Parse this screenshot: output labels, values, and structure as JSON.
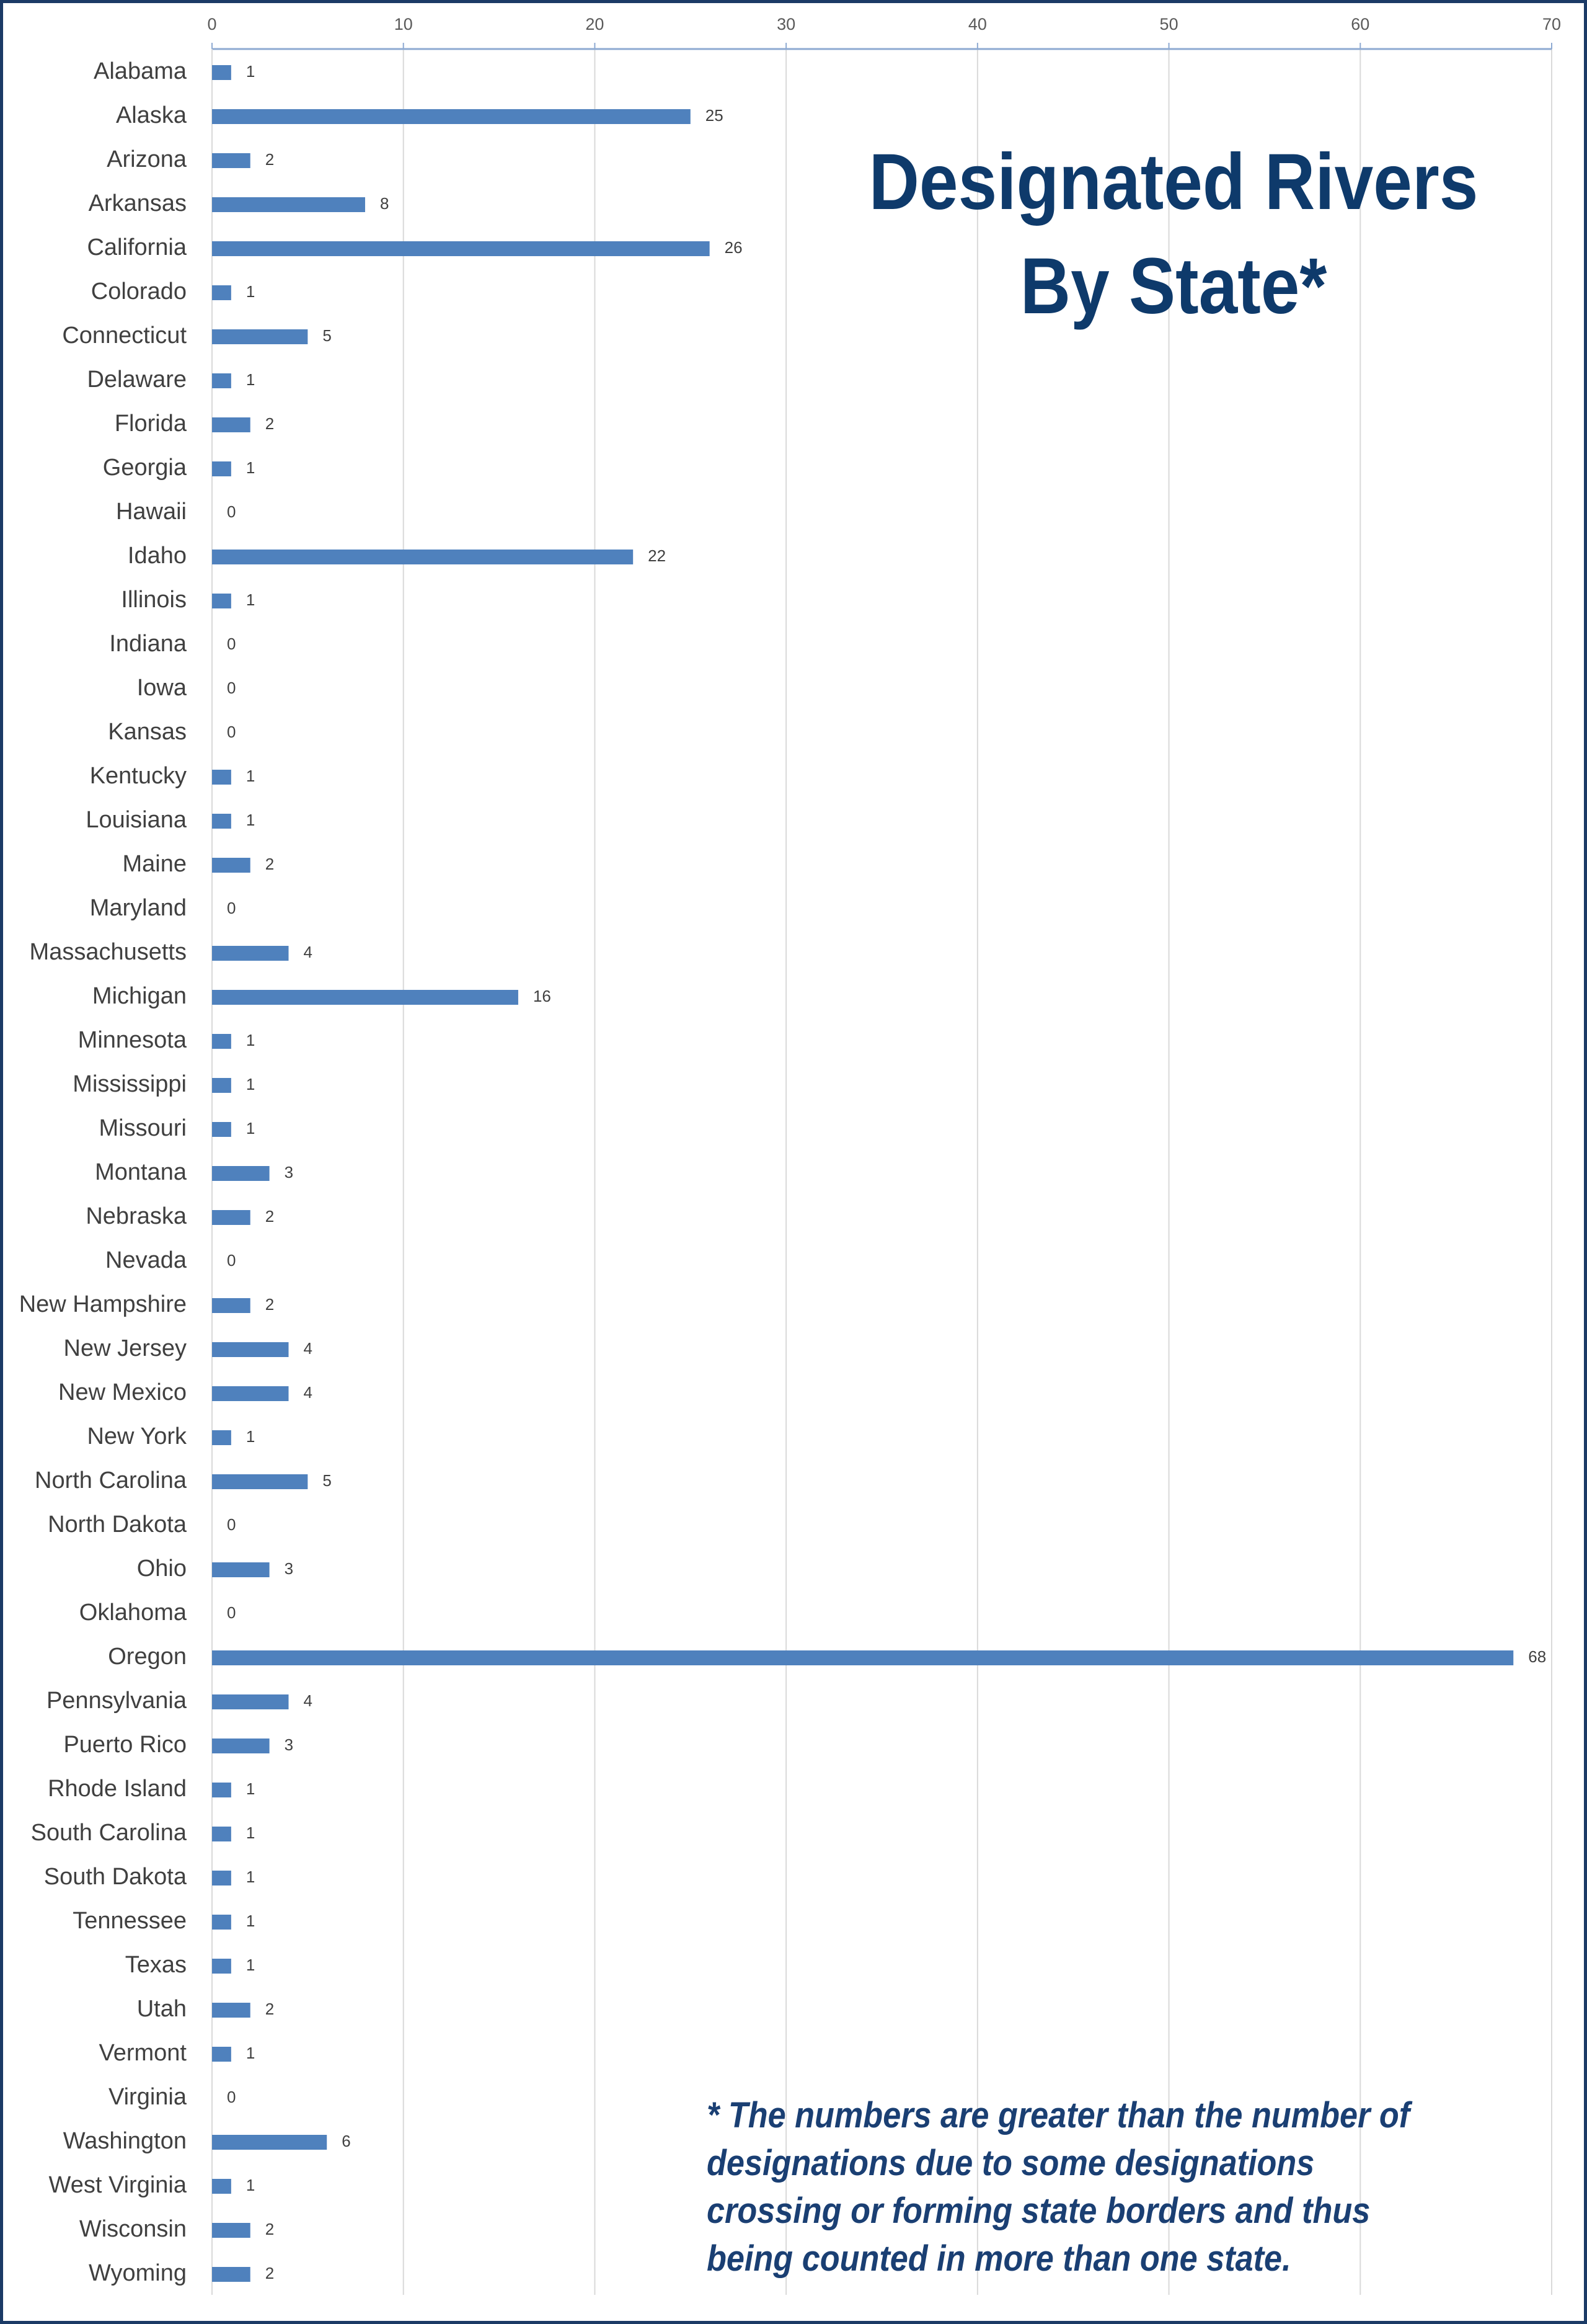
{
  "chart_data": {
    "type": "bar",
    "orientation": "horizontal",
    "title": "Designated Rivers By State*",
    "footnote": "* The numbers are greater than the number of designations due to some designations crossing or forming state borders and thus being counted in more than one state.",
    "categories": [
      "Alabama",
      "Alaska",
      "Arizona",
      "Arkansas",
      "California",
      "Colorado",
      "Connecticut",
      "Delaware",
      "Florida",
      "Georgia",
      "Hawaii",
      "Idaho",
      "Illinois",
      "Indiana",
      "Iowa",
      "Kansas",
      "Kentucky",
      "Louisiana",
      "Maine",
      "Maryland",
      "Massachusetts",
      "Michigan",
      "Minnesota",
      "Mississippi",
      "Missouri",
      "Montana",
      "Nebraska",
      "Nevada",
      "New Hampshire",
      "New Jersey",
      "New Mexico",
      "New York",
      "North Carolina",
      "North Dakota",
      "Ohio",
      "Oklahoma",
      "Oregon",
      "Pennsylvania",
      "Puerto Rico",
      "Rhode Island",
      "South Carolina",
      "South Dakota",
      "Tennessee",
      "Texas",
      "Utah",
      "Vermont",
      "Virginia",
      "Washington",
      "West Virginia",
      "Wisconsin",
      "Wyoming"
    ],
    "values": [
      1,
      25,
      2,
      8,
      26,
      1,
      5,
      1,
      2,
      1,
      0,
      22,
      1,
      0,
      0,
      0,
      1,
      1,
      2,
      0,
      4,
      16,
      1,
      1,
      1,
      3,
      2,
      0,
      2,
      4,
      4,
      1,
      5,
      0,
      3,
      0,
      68,
      4,
      3,
      1,
      1,
      1,
      1,
      1,
      2,
      1,
      0,
      6,
      1,
      2,
      2
    ],
    "color": "#4f81bd",
    "xlim": [
      0,
      70
    ],
    "xticks": [
      0,
      10,
      20,
      30,
      40,
      50,
      60,
      70
    ],
    "grid": true
  }
}
